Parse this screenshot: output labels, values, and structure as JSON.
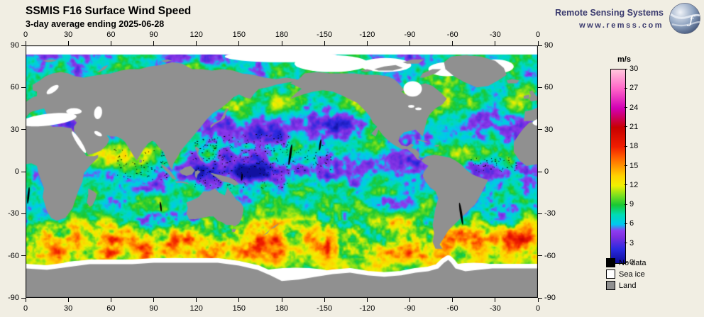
{
  "header": {
    "title": "SSMIS F16 Surface Wind Speed",
    "subtitle": "3-day average ending 2025-06-28"
  },
  "branding": {
    "name": "Remote Sensing Systems",
    "url": "www.remss.com"
  },
  "map": {
    "projection": "equirectangular",
    "lon_tick_labels": [
      "0",
      "30",
      "60",
      "90",
      "120",
      "150",
      "180",
      "-150",
      "-120",
      "-90",
      "-60",
      "-30",
      "0"
    ],
    "lat_tick_labels": [
      "90",
      "60",
      "30",
      "0",
      "-30",
      "-60",
      "-90"
    ]
  },
  "colorbar": {
    "unit": "m/s",
    "min": 0,
    "max": 30,
    "tick_labels": [
      "30",
      "27",
      "24",
      "21",
      "18",
      "15",
      "12",
      "9",
      "6",
      "3",
      "0"
    ],
    "stops": [
      {
        "v": 0,
        "c": "#0d0d96"
      },
      {
        "v": 2.2,
        "c": "#2a2ae0"
      },
      {
        "v": 4,
        "c": "#7b2fe0"
      },
      {
        "v": 5,
        "c": "#8f3cf0"
      },
      {
        "v": 6,
        "c": "#00c8f0"
      },
      {
        "v": 7.5,
        "c": "#00dcb4"
      },
      {
        "v": 9,
        "c": "#18c832"
      },
      {
        "v": 10.5,
        "c": "#7de01e"
      },
      {
        "v": 12,
        "c": "#f0f000"
      },
      {
        "v": 13.5,
        "c": "#ffd200"
      },
      {
        "v": 15,
        "c": "#ff9600"
      },
      {
        "v": 16.5,
        "c": "#ff5a00"
      },
      {
        "v": 18,
        "c": "#f01e00"
      },
      {
        "v": 21,
        "c": "#c80000"
      },
      {
        "v": 24,
        "c": "#d200b4"
      },
      {
        "v": 27,
        "c": "#ff64c8"
      },
      {
        "v": 30,
        "c": "#ffc8dc"
      }
    ]
  },
  "legend": [
    {
      "label": "No data",
      "color": "#000000"
    },
    {
      "label": "Sea ice",
      "color": "#ffffff"
    },
    {
      "label": "Land",
      "color": "#8f8f8f"
    }
  ]
}
